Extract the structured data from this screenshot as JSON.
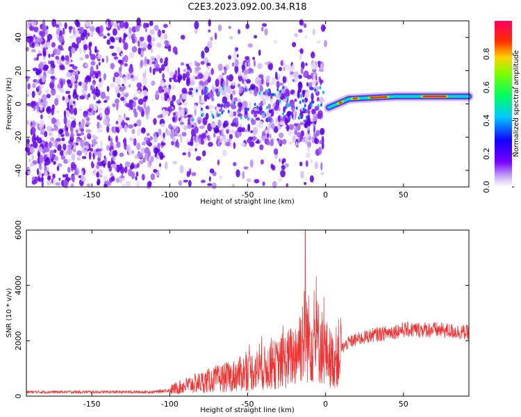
{
  "title": "C2E3.2023.092.00.34.R18",
  "chart_data": [
    {
      "type": "heatmap",
      "xlabel": "Height of straight line (km)",
      "ylabel": "Frequency (Hz)",
      "xlim": [
        -192,
        92
      ],
      "ylim": [
        -50,
        50
      ],
      "xticks": [
        -150,
        -100,
        -50,
        0,
        50
      ],
      "yticks": [
        -40,
        -20,
        0,
        20,
        40
      ],
      "colorbar": {
        "label": "Normalized spectral amplitude",
        "range": [
          0,
          1
        ],
        "ticks": [
          "0.0",
          "0.2",
          "0.4",
          "0.6",
          "0.8"
        ],
        "colormap": "gist_rainbow_r"
      },
      "features": [
        {
          "region": "x < 0",
          "pattern": "scattered low-amplitude noise across all frequencies"
        },
        {
          "region": "x > 0",
          "pattern": "single narrow line near 0 Hz rising to ~5 Hz",
          "amplitude": "high (0.8-1.0)"
        }
      ]
    },
    {
      "type": "line",
      "xlabel": "Height of straight line (km)",
      "ylabel": "SNR (10 * v/v)",
      "xlim": [
        -192,
        92
      ],
      "ylim": [
        0,
        6000
      ],
      "xticks": [
        -150,
        -100,
        -50,
        0,
        50
      ],
      "yticks": [
        0,
        2000,
        4000,
        6000
      ],
      "color": "#ee3333",
      "series": [
        {
          "x": [
            -190,
            -150,
            -110,
            -100,
            -90,
            -75,
            -60,
            -50,
            -40,
            -30,
            -20,
            -13,
            -10,
            -5,
            0,
            5,
            10,
            15,
            20,
            30,
            40,
            50,
            60,
            70,
            80,
            90
          ],
          "y": [
            150,
            150,
            150,
            220,
            380,
            560,
            720,
            880,
            1000,
            1150,
            1500,
            2300,
            2000,
            2000,
            1600,
            1250,
            1700,
            1950,
            2050,
            2200,
            2300,
            2400,
            2400,
            2400,
            2350,
            2300
          ]
        }
      ],
      "annotations": [
        {
          "type": "spike",
          "x": -13,
          "y": 6000
        }
      ]
    }
  ]
}
